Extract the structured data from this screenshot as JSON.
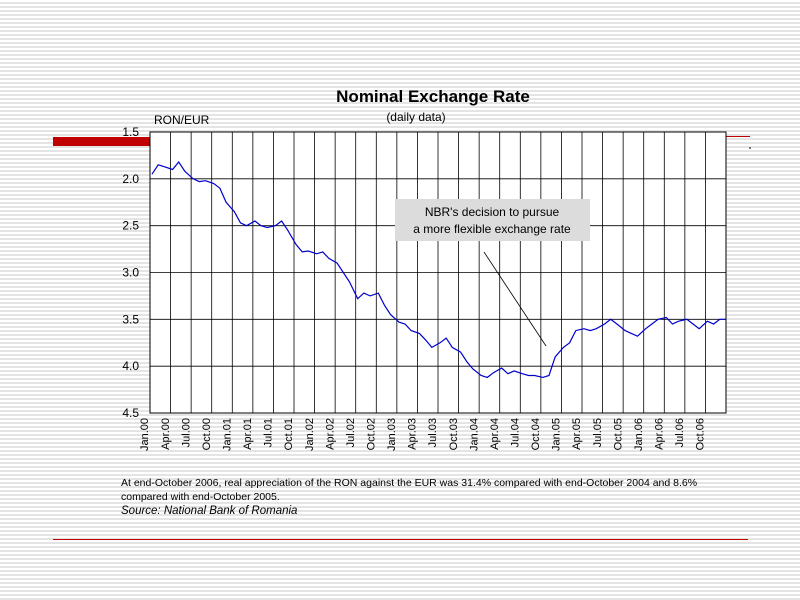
{
  "chart_data": {
    "type": "line",
    "title": "Nominal Exchange Rate",
    "subtitle": "(daily data)",
    "ylabel": "RON/EUR",
    "xlabel": "",
    "ylim": [
      1.5,
      4.5
    ],
    "y_inverted": true,
    "yticks": [
      "1.5",
      "2.0",
      "2.5",
      "3.0",
      "3.5",
      "4.0",
      "4.5"
    ],
    "grid": true,
    "categories": [
      "Jan.00",
      "Apr.00",
      "Jul.00",
      "Oct.00",
      "Jan.01",
      "Apr.01",
      "Jul.01",
      "Oct.01",
      "Jan.02",
      "Apr.02",
      "Jul.02",
      "Oct.02",
      "Jan.03",
      "Apr.03",
      "Jul.03",
      "Oct.03",
      "Jan.04",
      "Apr.04",
      "Jul.04",
      "Oct.04",
      "Jan.05",
      "Apr.05",
      "Jul.05",
      "Oct.05",
      "Jan.06",
      "Apr.06",
      "Jul.06",
      "Oct.06"
    ],
    "series": [
      {
        "name": "",
        "color": "#0000cc",
        "x": [
          0,
          0.3,
          0.6,
          1,
          1.3,
          1.6,
          2,
          2.3,
          2.6,
          3,
          3.3,
          3.6,
          4,
          4.3,
          4.6,
          5,
          5.3,
          5.6,
          6,
          6.3,
          6.6,
          7,
          7.3,
          7.6,
          8,
          8.3,
          8.6,
          9,
          9.3,
          9.6,
          10,
          10.3,
          10.6,
          11,
          11.3,
          11.6,
          12,
          12.3,
          12.6,
          13,
          13.3,
          13.6,
          14,
          14.3,
          14.6,
          15,
          15.3,
          15.6,
          16,
          16.3,
          16.6,
          17,
          17.3,
          17.6,
          18,
          18.3,
          18.6,
          19,
          19.3,
          19.6,
          20,
          20.3,
          20.6,
          21,
          21.3,
          21.6,
          22,
          22.3,
          22.6,
          23,
          23.3,
          23.6,
          24,
          24.3,
          24.6,
          25,
          25.3,
          25.6,
          26,
          26.3,
          26.6,
          27,
          27.3,
          27.6,
          27.9
        ],
        "values": [
          1.95,
          1.85,
          1.87,
          1.9,
          1.82,
          1.92,
          2.0,
          2.03,
          2.02,
          2.05,
          2.1,
          2.25,
          2.35,
          2.47,
          2.5,
          2.45,
          2.5,
          2.52,
          2.5,
          2.45,
          2.55,
          2.7,
          2.78,
          2.77,
          2.8,
          2.78,
          2.85,
          2.9,
          3.0,
          3.1,
          3.28,
          3.22,
          3.25,
          3.22,
          3.35,
          3.45,
          3.53,
          3.55,
          3.62,
          3.65,
          3.72,
          3.8,
          3.75,
          3.7,
          3.8,
          3.85,
          3.95,
          4.03,
          4.1,
          4.12,
          4.07,
          4.02,
          4.08,
          4.05,
          4.08,
          4.1,
          4.1,
          4.12,
          4.1,
          3.9,
          3.8,
          3.75,
          3.62,
          3.6,
          3.62,
          3.6,
          3.55,
          3.5,
          3.55,
          3.62,
          3.65,
          3.68,
          3.6,
          3.55,
          3.5,
          3.48,
          3.55,
          3.52,
          3.5,
          3.55,
          3.6,
          3.52,
          3.55,
          3.5,
          3.5
        ]
      }
    ],
    "annotation": {
      "lines": [
        "NBR's decision to pursue",
        "a more flexible exchange rate"
      ]
    }
  },
  "footnote": "At end-October 2006, real appreciation of the RON against the EUR was 31.4% compared with end-October 2004 and 8.6% compared with end-October 2005.",
  "source": "Source: National Bank of Romania",
  "colors": {
    "accent": "#c00000",
    "series": "#0000cc",
    "annotation_bg": "#dcdcdc"
  }
}
